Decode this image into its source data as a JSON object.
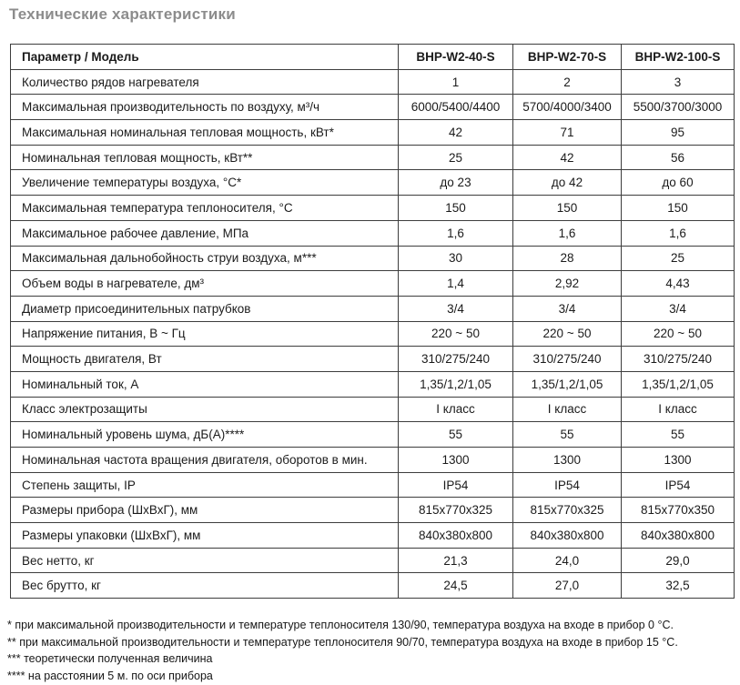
{
  "page_title": "Технические характеристики",
  "colors": {
    "title": "#8c8c8c",
    "table_border": "#3d3d3d",
    "text": "#1b1b1b",
    "background": "#ffffff"
  },
  "table": {
    "header": [
      "Параметр / Модель",
      "BHP-W2-40-S",
      "BHP-W2-70-S",
      "BHP-W2-100-S"
    ],
    "rows": [
      {
        "label": "Количество рядов нагревателя",
        "values": [
          "1",
          "2",
          "3"
        ]
      },
      {
        "label": "Максимальная производительность по воздуху, м³/ч",
        "values": [
          "6000/5400/4400",
          "5700/4000/3400",
          "5500/3700/3000"
        ]
      },
      {
        "label": "Максимальная номинальная тепловая мощность, кВт*",
        "values": [
          "42",
          "71",
          "95"
        ]
      },
      {
        "label": "Номинальная тепловая мощность, кВт**",
        "values": [
          "25",
          "42",
          "56"
        ]
      },
      {
        "label": "Увеличение температуры воздуха, °С*",
        "values": [
          "до 23",
          "до 42",
          "до 60"
        ]
      },
      {
        "label": "Максимальная температура теплоносителя, °С",
        "values": [
          "150",
          "150",
          "150"
        ]
      },
      {
        "label": "Максимальное рабочее давление, МПа",
        "values": [
          "1,6",
          "1,6",
          "1,6"
        ]
      },
      {
        "label": "Максимальная дальнобойность струи воздуха, м***",
        "values": [
          "30",
          "28",
          "25"
        ]
      },
      {
        "label": "Объем воды в нагревателе, дм³",
        "values": [
          "1,4",
          "2,92",
          "4,43"
        ]
      },
      {
        "label": "Диаметр присоединительных патрубков",
        "values": [
          "3/4",
          "3/4",
          "3/4"
        ]
      },
      {
        "label": "Напряжение питания, В ~ Гц",
        "values": [
          "220 ~ 50",
          "220 ~ 50",
          "220 ~ 50"
        ]
      },
      {
        "label": "Мощность двигателя, Вт",
        "values": [
          "310/275/240",
          "310/275/240",
          "310/275/240"
        ]
      },
      {
        "label": "Номинальный ток, А",
        "values": [
          "1,35/1,2/1,05",
          "1,35/1,2/1,05",
          "1,35/1,2/1,05"
        ]
      },
      {
        "label": "Класс электрозащиты",
        "values": [
          "I класс",
          "I класс",
          "I класс"
        ]
      },
      {
        "label": "Номинальный уровень шума, дБ(А)****",
        "values": [
          "55",
          "55",
          "55"
        ]
      },
      {
        "label": "Номинальная частота вращения двигателя, оборотов в мин.",
        "values": [
          "1300",
          "1300",
          "1300"
        ]
      },
      {
        "label": "Степень защиты, IP",
        "values": [
          "IP54",
          "IP54",
          "IP54"
        ]
      },
      {
        "label": "Размеры прибора (ШхВхГ), мм",
        "values": [
          "815х770х325",
          "815х770х325",
          "815х770х350"
        ]
      },
      {
        "label": "Размеры упаковки (ШхВхГ), мм",
        "values": [
          "840х380х800",
          "840х380х800",
          "840х380х800"
        ]
      },
      {
        "label": "Вес нетто, кг",
        "values": [
          "21,3",
          "24,0",
          "29,0"
        ]
      },
      {
        "label": "Вес брутто, кг",
        "values": [
          "24,5",
          "27,0",
          "32,5"
        ]
      }
    ]
  },
  "footnotes": [
    "* при максимальной производительности и температуре теплоносителя 130/90, температура воздуха на входе в прибор 0 °С.",
    "** при максимальной производительности и температуре теплоносителя 90/70, температура воздуха на входе в прибор 15 °С.",
    "*** теоретически полученная величина",
    "**** на расстоянии 5 м. по оси прибора"
  ]
}
